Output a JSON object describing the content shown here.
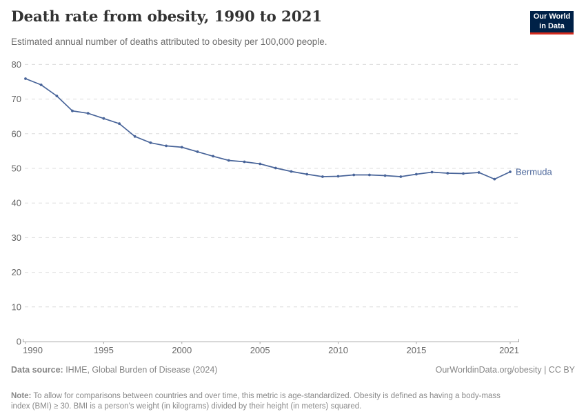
{
  "header": {
    "title": "Death rate from obesity, 1990 to 2021",
    "subtitle": "Estimated annual number of deaths attributed to obesity per 100,000 people."
  },
  "logo": {
    "line1": "Our World",
    "line2": "in Data",
    "bg_color": "#002147",
    "accent_color": "#d32b1e"
  },
  "chart_data": {
    "type": "line",
    "title": "Death rate from obesity, 1990 to 2021",
    "x": [
      1990,
      1991,
      1992,
      1993,
      1994,
      1995,
      1996,
      1997,
      1998,
      1999,
      2000,
      2001,
      2002,
      2003,
      2004,
      2005,
      2006,
      2007,
      2008,
      2009,
      2010,
      2011,
      2012,
      2013,
      2014,
      2015,
      2016,
      2017,
      2018,
      2019,
      2020,
      2021
    ],
    "series": [
      {
        "name": "Bermuda",
        "values": [
          75.9,
          74.1,
          70.9,
          66.6,
          65.9,
          64.4,
          62.9,
          59.2,
          57.4,
          56.5,
          56.1,
          54.8,
          53.5,
          52.3,
          51.9,
          51.3,
          50.1,
          49.1,
          48.3,
          47.6,
          47.7,
          48.1,
          48.1,
          47.9,
          47.6,
          48.3,
          48.9,
          48.6,
          48.5,
          48.8,
          46.9,
          49.0
        ]
      }
    ],
    "xlabel": "",
    "ylabel": "",
    "ylim": [
      0,
      80
    ],
    "yticks": [
      0,
      10,
      20,
      30,
      40,
      50,
      60,
      70,
      80
    ],
    "xticks": [
      1990,
      1995,
      2000,
      2005,
      2010,
      2015,
      2021
    ],
    "grid": "horizontal-dashed",
    "legend_position": "end-of-line",
    "line_color": "#486499",
    "marker": "dot"
  },
  "footer": {
    "data_source_label": "Data source:",
    "data_source_value": " IHME, Global Burden of Disease (2024)",
    "link": "OurWorldinData.org/obesity | CC BY",
    "note_label": "Note:",
    "note_text": " To allow for comparisons between countries and over time, this metric is age-standardized. Obesity is defined as having a body-mass\nindex (BMI) ≥ 30. BMI is a person's weight (in kilograms) divided by their height (in meters) squared."
  }
}
